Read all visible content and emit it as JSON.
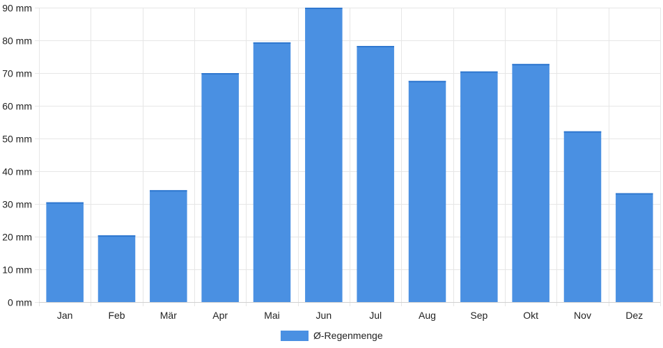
{
  "chart_data": {
    "type": "bar",
    "categories": [
      "Jan",
      "Feb",
      "Mär",
      "Apr",
      "Mai",
      "Jun",
      "Jul",
      "Aug",
      "Sep",
      "Okt",
      "Nov",
      "Dez"
    ],
    "series": [
      {
        "name": "Ø-Regenmenge",
        "values": [
          30.5,
          20.4,
          34.2,
          70.0,
          79.4,
          90.0,
          78.3,
          67.6,
          70.5,
          72.8,
          52.2,
          33.3
        ]
      }
    ],
    "title": "",
    "xlabel": "",
    "ylabel": "",
    "ylim": [
      0,
      90
    ],
    "yticks": [
      0,
      10,
      20,
      30,
      40,
      50,
      60,
      70,
      80,
      90
    ],
    "ytick_labels": [
      "0 mm",
      "10 mm",
      "20 mm",
      "30 mm",
      "40 mm",
      "50 mm",
      "60 mm",
      "70 mm",
      "80 mm",
      "90 mm"
    ],
    "grid": true,
    "legend_position": "bottom-center",
    "bar_color": "#4a90e2",
    "grid_color": "#e6e6e6"
  }
}
